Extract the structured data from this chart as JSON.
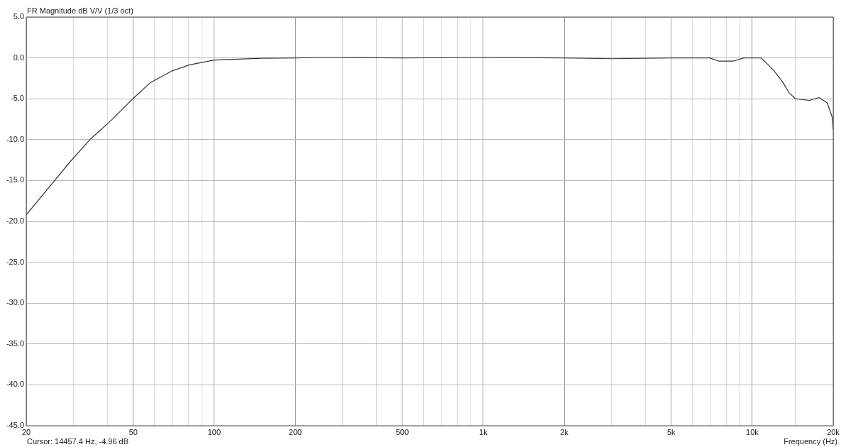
{
  "chart_data": {
    "type": "line",
    "title": "FR Magnitude dB V/V (1/3 oct)",
    "xlabel": "Frequency (Hz)",
    "log": "x",
    "grid": true,
    "legend": false,
    "marker": "none",
    "line_style": "solid",
    "xlim": [
      20,
      20000
    ],
    "ylim": [
      -45,
      5
    ],
    "xticks": [
      {
        "value": 20,
        "label": "20"
      },
      {
        "value": 30,
        "label": null
      },
      {
        "value": 40,
        "label": null
      },
      {
        "value": 50,
        "label": "50"
      },
      {
        "value": 60,
        "label": null
      },
      {
        "value": 70,
        "label": null
      },
      {
        "value": 80,
        "label": null
      },
      {
        "value": 90,
        "label": null
      },
      {
        "value": 100,
        "label": "100"
      },
      {
        "value": 200,
        "label": "200"
      },
      {
        "value": 300,
        "label": null
      },
      {
        "value": 400,
        "label": null
      },
      {
        "value": 500,
        "label": "500"
      },
      {
        "value": 600,
        "label": null
      },
      {
        "value": 700,
        "label": null
      },
      {
        "value": 800,
        "label": null
      },
      {
        "value": 900,
        "label": null
      },
      {
        "value": 1000,
        "label": "1k"
      },
      {
        "value": 2000,
        "label": "2k"
      },
      {
        "value": 3000,
        "label": null
      },
      {
        "value": 4000,
        "label": null
      },
      {
        "value": 5000,
        "label": "5k"
      },
      {
        "value": 6000,
        "label": null
      },
      {
        "value": 7000,
        "label": null
      },
      {
        "value": 8000,
        "label": null
      },
      {
        "value": 9000,
        "label": null
      },
      {
        "value": 10000,
        "label": "10k"
      },
      {
        "value": 20000,
        "label": "20k"
      }
    ],
    "yticks": [
      {
        "value": 5,
        "label": "5.0"
      },
      {
        "value": 0,
        "label": "0.0"
      },
      {
        "value": -5,
        "label": "-5.0"
      },
      {
        "value": -10,
        "label": "-10.0"
      },
      {
        "value": -15,
        "label": "-15.0"
      },
      {
        "value": -20,
        "label": "-20.0"
      },
      {
        "value": -25,
        "label": "-25.0"
      },
      {
        "value": -30,
        "label": "-30.0"
      },
      {
        "value": -35,
        "label": "-35.0"
      },
      {
        "value": -40,
        "label": "-40.0"
      },
      {
        "value": -45,
        "label": "-45.0"
      }
    ],
    "series": [
      {
        "color": "#333333",
        "x": [
          20,
          25.5,
          29.3,
          34.5,
          41.5,
          49.8,
          58,
          70,
          81,
          100,
          150,
          200,
          250,
          300,
          500,
          1000,
          2000,
          3000,
          5000,
          6950,
          7520,
          8490,
          9300,
          10000,
          10800,
          12000,
          13000,
          13700,
          14460,
          16300,
          17700,
          19000,
          19800,
          20000
        ],
        "values": [
          -19.2,
          -15,
          -12.6,
          -10,
          -7.6,
          -5,
          -3,
          -1.56,
          -0.85,
          -0.26,
          -0.05,
          0,
          0.05,
          0.05,
          0,
          0.05,
          0,
          -0.1,
          0,
          0,
          -0.4,
          -0.4,
          0,
          0,
          0,
          -1.5,
          -3,
          -4.25,
          -5,
          -5.2,
          -4.85,
          -5.5,
          -7.2,
          -8.8
        ]
      }
    ],
    "ref_lines": [
      {
        "axis": "x",
        "value": 14457.4,
        "color": "#e0e040"
      }
    ],
    "annotations": [
      "Cursor: 14457.4 Hz, -4.96 dB"
    ]
  }
}
